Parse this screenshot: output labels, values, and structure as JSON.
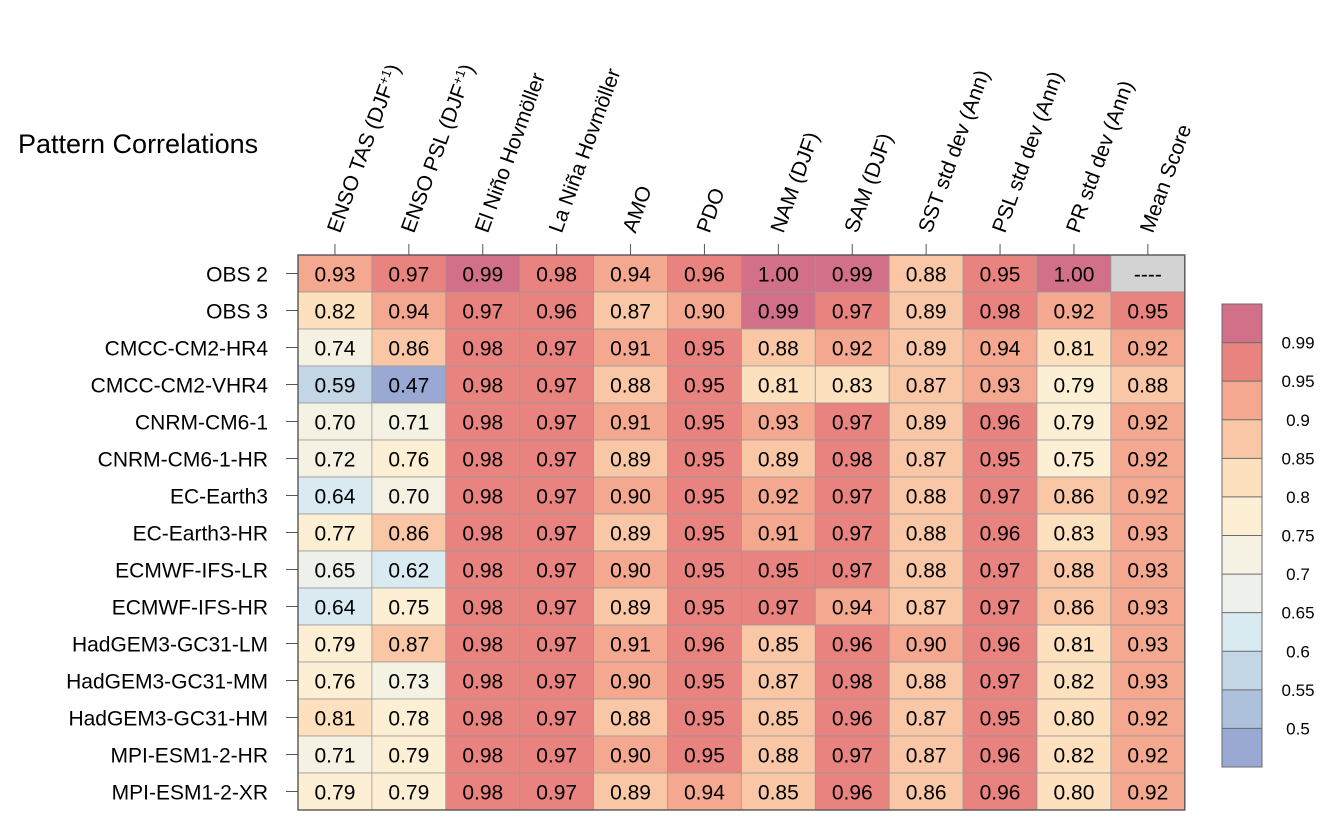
{
  "chart_data": {
    "type": "heatmap",
    "title": "Pattern Correlations",
    "columns": [
      "ENSO TAS (DJF+1)",
      "ENSO PSL (DJF+1)",
      "El Niño Hovmöller",
      "La Niña Hovmöller",
      "AMO",
      "PDO",
      "NAM (DJF)",
      "SAM (DJF)",
      "SST std dev (Ann)",
      "PSL std dev (Ann)",
      "PR std dev (Ann)",
      "Mean Score"
    ],
    "rows": [
      "OBS 2",
      "OBS 3",
      "CMCC-CM2-HR4",
      "CMCC-CM2-VHR4",
      "CNRM-CM6-1",
      "CNRM-CM6-1-HR",
      "EC-Earth3",
      "EC-Earth3-HR",
      "ECMWF-IFS-LR",
      "ECMWF-IFS-HR",
      "HadGEM3-GC31-LM",
      "HadGEM3-GC31-MM",
      "HadGEM3-GC31-HM",
      "MPI-ESM1-2-HR",
      "MPI-ESM1-2-XR"
    ],
    "values": [
      [
        "0.93",
        "0.97",
        "0.99",
        "0.98",
        "0.94",
        "0.96",
        "1.00",
        "0.99",
        "0.88",
        "0.95",
        "1.00",
        "----"
      ],
      [
        "0.82",
        "0.94",
        "0.97",
        "0.96",
        "0.87",
        "0.90",
        "0.99",
        "0.97",
        "0.89",
        "0.98",
        "0.92",
        "0.95"
      ],
      [
        "0.74",
        "0.86",
        "0.98",
        "0.97",
        "0.91",
        "0.95",
        "0.88",
        "0.92",
        "0.89",
        "0.94",
        "0.81",
        "0.92"
      ],
      [
        "0.59",
        "0.47",
        "0.98",
        "0.97",
        "0.88",
        "0.95",
        "0.81",
        "0.83",
        "0.87",
        "0.93",
        "0.79",
        "0.88"
      ],
      [
        "0.70",
        "0.71",
        "0.98",
        "0.97",
        "0.91",
        "0.95",
        "0.93",
        "0.97",
        "0.89",
        "0.96",
        "0.79",
        "0.92"
      ],
      [
        "0.72",
        "0.76",
        "0.98",
        "0.97",
        "0.89",
        "0.95",
        "0.89",
        "0.98",
        "0.87",
        "0.95",
        "0.75",
        "0.92"
      ],
      [
        "0.64",
        "0.70",
        "0.98",
        "0.97",
        "0.90",
        "0.95",
        "0.92",
        "0.97",
        "0.88",
        "0.97",
        "0.86",
        "0.92"
      ],
      [
        "0.77",
        "0.86",
        "0.98",
        "0.97",
        "0.89",
        "0.95",
        "0.91",
        "0.97",
        "0.88",
        "0.96",
        "0.83",
        "0.93"
      ],
      [
        "0.65",
        "0.62",
        "0.98",
        "0.97",
        "0.90",
        "0.95",
        "0.95",
        "0.97",
        "0.88",
        "0.97",
        "0.88",
        "0.93"
      ],
      [
        "0.64",
        "0.75",
        "0.98",
        "0.97",
        "0.89",
        "0.95",
        "0.97",
        "0.94",
        "0.87",
        "0.97",
        "0.86",
        "0.93"
      ],
      [
        "0.79",
        "0.87",
        "0.98",
        "0.97",
        "0.91",
        "0.96",
        "0.85",
        "0.96",
        "0.90",
        "0.96",
        "0.81",
        "0.93"
      ],
      [
        "0.76",
        "0.73",
        "0.98",
        "0.97",
        "0.90",
        "0.95",
        "0.87",
        "0.98",
        "0.88",
        "0.97",
        "0.82",
        "0.93"
      ],
      [
        "0.81",
        "0.78",
        "0.98",
        "0.97",
        "0.88",
        "0.95",
        "0.85",
        "0.96",
        "0.87",
        "0.95",
        "0.80",
        "0.92"
      ],
      [
        "0.71",
        "0.79",
        "0.98",
        "0.97",
        "0.90",
        "0.95",
        "0.88",
        "0.97",
        "0.87",
        "0.96",
        "0.82",
        "0.92"
      ],
      [
        "0.79",
        "0.79",
        "0.98",
        "0.97",
        "0.89",
        "0.94",
        "0.85",
        "0.96",
        "0.86",
        "0.96",
        "0.80",
        "0.92"
      ]
    ],
    "colorbar": {
      "ticks": [
        "0.99",
        "0.95",
        "0.9",
        "0.85",
        "0.8",
        "0.75",
        "0.7",
        "0.65",
        "0.6",
        "0.55",
        "0.5"
      ],
      "levels": [
        0.5,
        0.55,
        0.6,
        0.65,
        0.7,
        0.75,
        0.8,
        0.85,
        0.9,
        0.95,
        0.99
      ],
      "colors": [
        "#9aa9d4",
        "#adc1dc",
        "#c2d6e6",
        "#d9eaf1",
        "#eef1eb",
        "#f5f2e4",
        "#fcefd4",
        "#fde1bf",
        "#f9c7a6",
        "#f3a88f",
        "#e9837f",
        "#d17088"
      ],
      "missing_color": "#d3d3d3"
    }
  }
}
